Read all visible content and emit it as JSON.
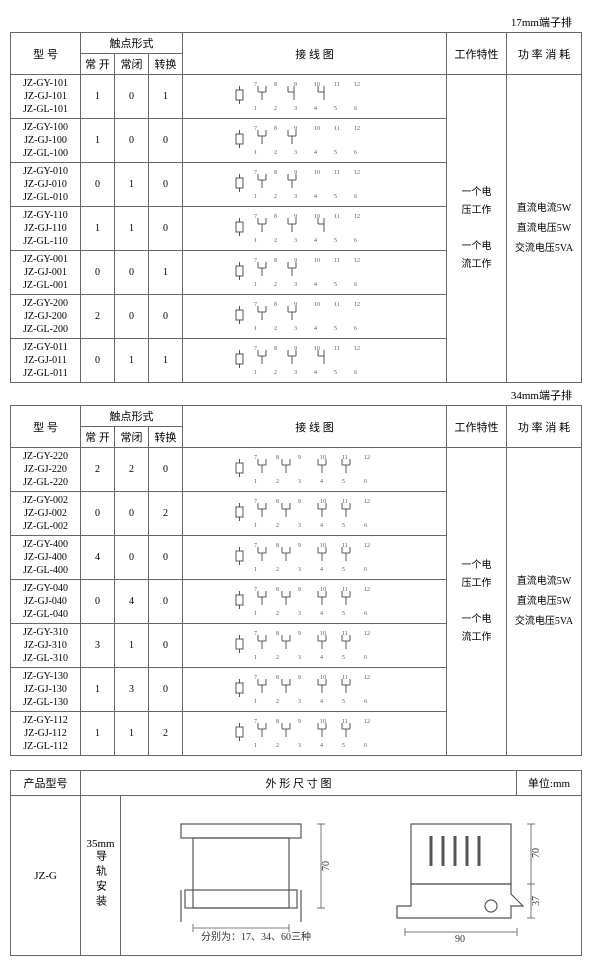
{
  "table17": {
    "header_label": "17mm端子排",
    "headers": {
      "model": "型 号",
      "contact": "触点形式",
      "no": "常 开",
      "nc": "常闭",
      "co": "转换",
      "wiring": "接  线  图",
      "work": "工作特性",
      "power": "功 率 消 耗"
    },
    "work_text": "一个电\n压工作\n\n一个电\n流工作",
    "power_text": "直流电流5W\n直流电压5W\n交流电压5VA",
    "rows": [
      {
        "models": [
          "JZ-GY-101",
          "JZ-GJ-101",
          "JZ-GL-101"
        ],
        "no": "1",
        "nc": "0",
        "co": "1",
        "diag": "A"
      },
      {
        "models": [
          "JZ-GY-100",
          "JZ-GJ-100",
          "JZ-GL-100"
        ],
        "no": "1",
        "nc": "0",
        "co": "0",
        "diag": "B"
      },
      {
        "models": [
          "JZ-GY-010",
          "JZ-GJ-010",
          "JZ-GL-010"
        ],
        "no": "0",
        "nc": "1",
        "co": "0",
        "diag": "B"
      },
      {
        "models": [
          "JZ-GY-110",
          "JZ-GJ-110",
          "JZ-GL-110"
        ],
        "no": "1",
        "nc": "1",
        "co": "0",
        "diag": "C"
      },
      {
        "models": [
          "JZ-GY-001",
          "JZ-GJ-001",
          "JZ-GL-001"
        ],
        "no": "0",
        "nc": "0",
        "co": "1",
        "diag": "B"
      },
      {
        "models": [
          "JZ-GY-200",
          "JZ-GJ-200",
          "JZ-GL-200"
        ],
        "no": "2",
        "nc": "0",
        "co": "0",
        "diag": "B"
      },
      {
        "models": [
          "JZ-GY-011",
          "JZ-GJ-011",
          "JZ-GL-011"
        ],
        "no": "0",
        "nc": "1",
        "co": "1",
        "diag": "C"
      }
    ]
  },
  "table34": {
    "header_label": "34mm端子排",
    "headers": {
      "model": "型 号",
      "contact": "触点形式",
      "no": "常 开",
      "nc": "常闭",
      "co": "转换",
      "wiring": "接  线  图",
      "work": "工作特性",
      "power": "功 率 消 耗"
    },
    "work_text": "一个电\n压工作\n\n一个电\n流工作",
    "power_text": "直流电流5W\n直流电压5W\n交流电压5VA",
    "rows": [
      {
        "models": [
          "JZ-GY-220",
          "JZ-GJ-220",
          "JZ-GL-220"
        ],
        "no": "2",
        "nc": "2",
        "co": "0",
        "diag": "D"
      },
      {
        "models": [
          "JZ-GY-002",
          "JZ-GJ-002",
          "JZ-GL-002"
        ],
        "no": "0",
        "nc": "0",
        "co": "2",
        "diag": "D"
      },
      {
        "models": [
          "JZ-GY-400",
          "JZ-GJ-400",
          "JZ-GL-400"
        ],
        "no": "4",
        "nc": "0",
        "co": "0",
        "diag": "D"
      },
      {
        "models": [
          "JZ-GY-040",
          "JZ-GJ-040",
          "JZ-GL-040"
        ],
        "no": "0",
        "nc": "4",
        "co": "0",
        "diag": "D"
      },
      {
        "models": [
          "JZ-GY-310",
          "JZ-GJ-310",
          "JZ-GL-310"
        ],
        "no": "3",
        "nc": "1",
        "co": "0",
        "diag": "D"
      },
      {
        "models": [
          "JZ-GY-130",
          "JZ-GJ-130",
          "JZ-GL-130"
        ],
        "no": "1",
        "nc": "3",
        "co": "0",
        "diag": "D"
      },
      {
        "models": [
          "JZ-GY-112",
          "JZ-GJ-112",
          "JZ-GL-112"
        ],
        "no": "1",
        "nc": "1",
        "co": "2",
        "diag": "D"
      }
    ]
  },
  "outline": {
    "headers": {
      "model": "产品型号",
      "drawing": "外 形 尺 寸 图",
      "unit": "单位:mm"
    },
    "model": "JZ-G",
    "rail_label": "35mm",
    "rail_text": "导轨安装",
    "height": "70",
    "height2": "70",
    "width2": "90",
    "side": "37",
    "note": "分别为：17、34、60三种"
  },
  "colors": {
    "line": "#555",
    "text": "#333"
  }
}
